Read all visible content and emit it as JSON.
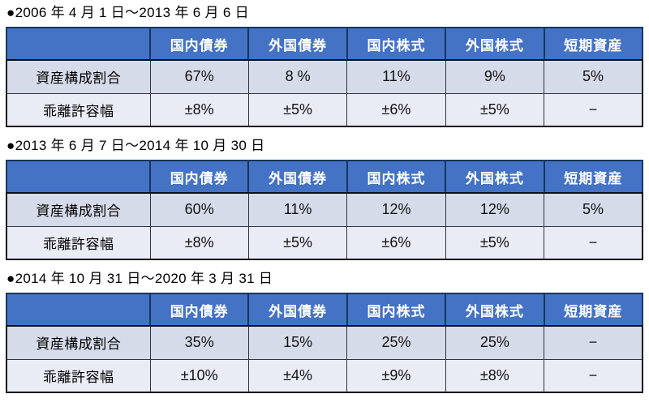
{
  "colors": {
    "header_bg": "#4472C4",
    "header_text": "#ffffff",
    "header_divider": "#17375E",
    "row_allocation_bg": "#D6DBEA",
    "row_tolerance_bg": "#E9EBF5",
    "outer_border": "#0d1117"
  },
  "columns": [
    "国内債券",
    "外国債券",
    "国内株式",
    "外国株式",
    "短期資産"
  ],
  "sections": [
    {
      "title": "●2006 年 4 月 1 日～2013 年 6 月 6 日",
      "rows": [
        {
          "label": "資産構成割合",
          "values": [
            "67%",
            "8 %",
            "11%",
            "9%",
            "5%"
          ]
        },
        {
          "label": "乖離許容幅",
          "values": [
            "±8%",
            "±5%",
            "±6%",
            "±5%",
            "−"
          ]
        }
      ]
    },
    {
      "title": "●2013 年 6 月 7 日～2014 年 10 月 30 日",
      "rows": [
        {
          "label": "資産構成割合",
          "values": [
            "60%",
            "11%",
            "12%",
            "12%",
            "5%"
          ]
        },
        {
          "label": "乖離許容幅",
          "values": [
            "±8%",
            "±5%",
            "±6%",
            "±5%",
            "−"
          ]
        }
      ]
    },
    {
      "title": "●2014 年 10 月 31 日～2020 年 3 月 31 日",
      "rows": [
        {
          "label": "資産構成割合",
          "values": [
            "35%",
            "15%",
            "25%",
            "25%",
            "−"
          ]
        },
        {
          "label": "乖離許容幅",
          "values": [
            "±10%",
            "±4%",
            "±9%",
            "±8%",
            "−"
          ]
        }
      ]
    }
  ]
}
